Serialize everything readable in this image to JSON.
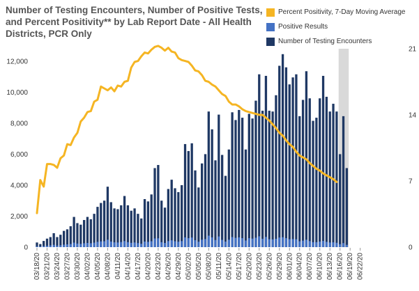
{
  "chart_data": {
    "type": "bar",
    "title": "Number of Testing Encounters, Number of Positive Tests, and Percent Positivity** by Lab Report Date - All Health Districts, PCR Only",
    "xlabel": "",
    "ylabel": "",
    "ylim": [
      0,
      12800
    ],
    "y2lim": [
      0,
      21
    ],
    "y_ticks": [
      "0",
      "2,000",
      "4,000",
      "6,000",
      "8,000",
      "10,000",
      "12,000"
    ],
    "y2_ticks": [
      "0",
      "7",
      "14",
      "21"
    ],
    "x_ticks": [
      "03/18/20",
      "03/21/20",
      "03/24/20",
      "03/27/20",
      "03/30/20",
      "04/02/20",
      "04/05/20",
      "04/08/20",
      "04/11/20",
      "04/14/20",
      "04/17/20",
      "04/20/20",
      "04/23/20",
      "04/26/20",
      "04/29/20",
      "05/02/20",
      "05/05/20",
      "05/08/20",
      "05/11/20",
      "05/14/20",
      "05/17/20",
      "05/20/20",
      "05/23/20",
      "05/26/20",
      "05/29/20",
      "06/01/20",
      "06/04/20",
      "06/07/20",
      "06/10/20",
      "06/13/20",
      "06/16/20",
      "06/19/20",
      "06/22/20"
    ],
    "shaded_start_day": 90,
    "shaded_end_day": 93,
    "series": [
      {
        "name": "Number of Testing Encounters",
        "color": "#1f3864",
        "values": [
          300,
          200,
          400,
          550,
          650,
          900,
          650,
          800,
          1050,
          1150,
          1350,
          1950,
          1550,
          1450,
          1750,
          1950,
          1800,
          2150,
          2600,
          2850,
          3000,
          3900,
          2900,
          2500,
          2450,
          2700,
          3300,
          2700,
          2350,
          2500,
          2150,
          1850,
          3100,
          2950,
          3400,
          5100,
          5300,
          3000,
          2550,
          3750,
          4350,
          3800,
          3550,
          4000,
          6650,
          6200,
          6700,
          4950,
          3850,
          5400,
          6000,
          8750,
          7600,
          5600,
          8550,
          5950,
          4600,
          6300,
          8700,
          8200,
          8850,
          8350,
          6300,
          8600,
          8300,
          9450,
          11150,
          8800,
          11050,
          8800,
          8750,
          9800,
          11700,
          12450,
          11600,
          10500,
          10950,
          11150,
          8450,
          9500,
          11350,
          9600,
          8150,
          8350,
          9600,
          11050,
          9700,
          8750,
          9250,
          8750,
          6000,
          8450,
          5100
        ],
        "series_start_day": 0
      },
      {
        "name": "Positive Results",
        "color": "#4472c4",
        "values": [
          60,
          40,
          70,
          90,
          110,
          150,
          100,
          120,
          160,
          180,
          200,
          290,
          230,
          210,
          250,
          270,
          250,
          290,
          340,
          370,
          380,
          480,
          360,
          310,
          300,
          330,
          390,
          320,
          280,
          300,
          260,
          220,
          360,
          340,
          380,
          560,
          570,
          320,
          270,
          390,
          440,
          380,
          350,
          390,
          630,
          580,
          620,
          450,
          350,
          480,
          520,
          740,
          630,
          460,
          690,
          470,
          360,
          480,
          650,
          600,
          630,
          580,
          430,
          580,
          550,
          610,
          700,
          540,
          660,
          510,
          500,
          540,
          620,
          640,
          580,
          510,
          520,
          510,
          380,
          420,
          480,
          390,
          320,
          320,
          360,
          400,
          340,
          300,
          310,
          280,
          190,
          260,
          150
        ],
        "series_start_day": 0
      },
      {
        "name": "Percent Positivity, 7-Day Moving Average",
        "color": "#f5b523",
        "values": [
          3.6,
          7.1,
          6.4,
          8.8,
          8.8,
          8.7,
          8.4,
          9.4,
          9.7,
          10.9,
          10.8,
          11.6,
          12.1,
          13.3,
          13.7,
          14.3,
          14.4,
          15.4,
          15.6,
          17.0,
          16.8,
          16.6,
          16.9,
          16.5,
          17.1,
          17.0,
          17.5,
          17.6,
          19.0,
          19.6,
          19.7,
          20.2,
          20.6,
          20.5,
          20.9,
          21.2,
          21.3,
          21.1,
          20.8,
          21.1,
          20.7,
          20.6,
          20.0,
          19.8,
          19.7,
          19.6,
          19.2,
          18.7,
          18.6,
          18.2,
          17.6,
          17.5,
          17.2,
          17.0,
          16.6,
          16.2,
          16.0,
          15.4,
          15.1,
          15.1,
          14.9,
          14.6,
          14.4,
          14.3,
          14.2,
          14.1,
          14.0,
          14.0,
          13.7,
          13.4,
          13.0,
          12.6,
          12.1,
          11.8,
          11.3,
          10.9,
          10.6,
          10.1,
          9.7,
          9.5,
          9.3,
          8.9,
          8.6,
          8.3,
          8.1,
          7.8,
          7.6,
          7.4,
          7.2,
          6.9
        ],
        "series_start_day": 0
      }
    ]
  }
}
